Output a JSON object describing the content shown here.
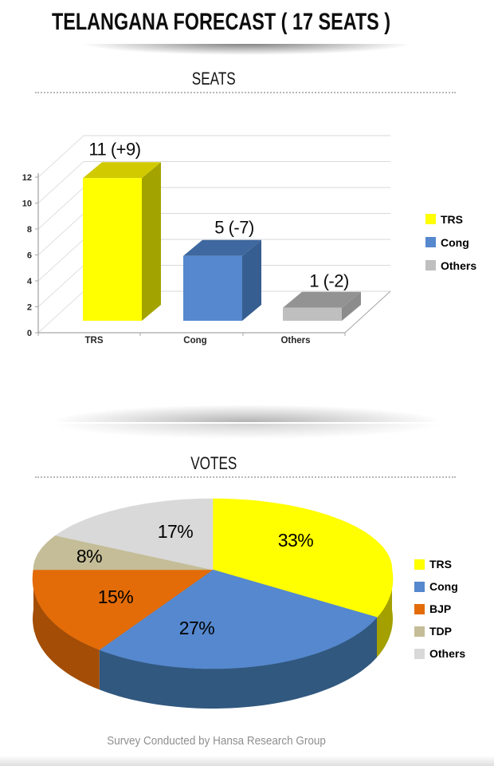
{
  "header": {
    "title": "TELANGANA FORECAST ( 17 SEATS )"
  },
  "footer": {
    "text": "Survey Conducted by Hansa Research Group"
  },
  "chart_data": [
    {
      "type": "bar",
      "projection": "3d",
      "title": "SEATS",
      "categories": [
        "TRS",
        "Cong",
        "Others"
      ],
      "values": [
        11,
        5,
        1
      ],
      "data_labels": [
        "11 (+9)",
        "5 (-7)",
        "1 (-2)"
      ],
      "ylim": [
        0,
        12
      ],
      "yticks": [
        0,
        2,
        4,
        6,
        8,
        10,
        12
      ],
      "grid": true,
      "legend_position": "right",
      "series_colors": [
        {
          "name": "TRS",
          "face": "#FFFF00",
          "top": "#D2CA00",
          "side": "#A3A300"
        },
        {
          "name": "Cong",
          "face": "#5588CE",
          "top": "#3E689F",
          "side": "#375E91"
        },
        {
          "name": "Others",
          "face": "#BFBFBF",
          "top": "#939393",
          "side": "#8C8C8C"
        }
      ],
      "label_positions": [
        {
          "x": 144,
          "y": 57
        },
        {
          "x": 294,
          "y": 155
        },
        {
          "x": 413,
          "y": 222
        }
      ],
      "legend": [
        {
          "label": "TRS",
          "color": "#FFFF00"
        },
        {
          "label": "Cong",
          "color": "#5588CE"
        },
        {
          "label": "Others",
          "color": "#BFBFBF"
        }
      ]
    },
    {
      "type": "pie",
      "projection": "3d",
      "title": "VOTES",
      "start_angle_deg": 0,
      "direction": "clockwise",
      "slices": [
        {
          "label": "TRS",
          "value": 33,
          "text": "33%",
          "color": "#FFFF00",
          "side": "#A3A000"
        },
        {
          "label": "Cong",
          "value": 27,
          "text": "27%",
          "color": "#5588CE",
          "side": "#31587F"
        },
        {
          "label": "BJP",
          "value": 15,
          "text": "15%",
          "color": "#E36C09",
          "side": "#A34D06"
        },
        {
          "label": "TDP",
          "value": 8,
          "text": "8%",
          "color": "#C4BD97",
          "side": "#9A9474"
        },
        {
          "label": "Others",
          "value": 17,
          "text": "17%",
          "color": "#D9D9D9",
          "side": "#ABABAB"
        }
      ],
      "label_positions": [
        {
          "x": 371,
          "y": 77
        },
        {
          "x": 247,
          "y": 187
        },
        {
          "x": 145,
          "y": 148
        },
        {
          "x": 112,
          "y": 97
        },
        {
          "x": 220,
          "y": 66
        }
      ],
      "legend_position": "right",
      "legend": [
        {
          "label": "TRS",
          "color": "#FFFF00"
        },
        {
          "label": "Cong",
          "color": "#5588CE"
        },
        {
          "label": "BJP",
          "color": "#E36C09"
        },
        {
          "label": "TDP",
          "color": "#C4BD97"
        },
        {
          "label": "Others",
          "color": "#D9D9D9"
        }
      ]
    }
  ]
}
